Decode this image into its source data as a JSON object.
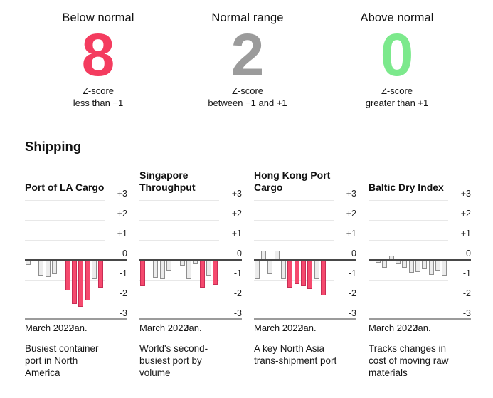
{
  "summary": {
    "cards": [
      {
        "label": "Below normal",
        "value": "8",
        "color": "#f43c5f",
        "desc_line1": "Z-score",
        "desc_line2": "less than −1"
      },
      {
        "label": "Normal range",
        "value": "2",
        "color": "#9b9b9b",
        "desc_line1": "Z-score",
        "desc_line2": "between −1 and +1"
      },
      {
        "label": "Above normal",
        "value": "0",
        "color": "#7ce98c",
        "desc_line1": "Z-score",
        "desc_line2": "greater than +1"
      }
    ]
  },
  "section": {
    "title": "Shipping"
  },
  "colors": {
    "below_normal": "#f43c5f",
    "normal": "#9b9b9b",
    "above_normal": "#7ce98c",
    "bar_pink_fill": "#f54a6e",
    "bar_pink_border": "#c92d55",
    "bar_gray_fill": "#ececec",
    "bar_gray_border": "#8f8f8f",
    "zero_line": "#474747",
    "gridline": "#e8e8e8",
    "base_line": "#9b9b9b",
    "color_rule": "bar is pink when z-score <= -1, gray when between -1 and +1"
  },
  "chart_data": [
    {
      "type": "bar",
      "title": "Port of LA Cargo",
      "caption": "Busiest container port in North America",
      "x_start_label": "March 2022",
      "x_end_label": "Jan.",
      "ylabel": "Z-score",
      "ylim": [
        -3,
        3
      ],
      "grid": true,
      "yticks": [
        "+3",
        "+2",
        "+1",
        "0",
        "-1",
        "-2",
        "-3"
      ],
      "values": [
        -0.25,
        null,
        -0.8,
        -0.85,
        -0.7,
        null,
        -1.55,
        -2.2,
        -2.35,
        -2.05,
        -0.95,
        -1.4
      ]
    },
    {
      "type": "bar",
      "title": "Singapore Throughput",
      "caption": "World's second-busiest port by volume",
      "x_start_label": "March 2022",
      "x_end_label": "Jan.",
      "ylabel": "Z-score",
      "ylim": [
        -3,
        3
      ],
      "grid": true,
      "yticks": [
        "+3",
        "+2",
        "+1",
        "0",
        "-1",
        "-2",
        "-3"
      ],
      "values": [
        -1.3,
        null,
        -0.9,
        -0.95,
        -0.55,
        null,
        -0.3,
        -0.95,
        -0.2,
        -1.4,
        -0.8,
        -1.25
      ]
    },
    {
      "type": "bar",
      "title": "Hong Kong Port Cargo",
      "caption": "A key North Asia trans-shipment port",
      "x_start_label": "March 2022",
      "x_end_label": "Jan.",
      "ylabel": "Z-score",
      "ylim": [
        -3,
        3
      ],
      "grid": true,
      "yticks": [
        "+3",
        "+2",
        "+1",
        "0",
        "-1",
        "-2",
        "-3"
      ],
      "values": [
        -0.95,
        0.45,
        -0.7,
        0.45,
        -0.95,
        -1.4,
        -1.2,
        -1.3,
        -1.45,
        -0.95,
        -1.8,
        null
      ]
    },
    {
      "type": "bar",
      "title": "Baltic Dry Index",
      "caption": "Tracks changes in cost of moving raw materials",
      "x_start_label": "March 2022",
      "x_end_label": "Jan.",
      "ylabel": "Z-score",
      "ylim": [
        -3,
        3
      ],
      "grid": true,
      "yticks": [
        "+3",
        "+2",
        "+1",
        "0",
        "-1",
        "-2",
        "-3"
      ],
      "values": [
        null,
        -0.15,
        -0.4,
        0.2,
        -0.2,
        -0.4,
        -0.65,
        -0.6,
        -0.45,
        -0.75,
        -0.55,
        -0.8
      ]
    }
  ]
}
